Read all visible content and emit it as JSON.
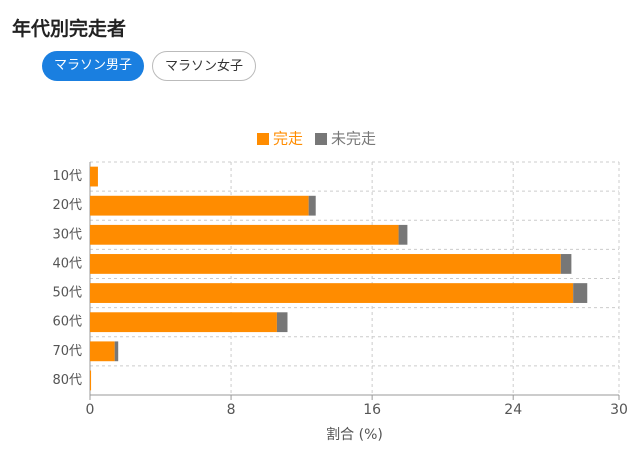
{
  "chart_data": {
    "type": "stacked-barh",
    "title": "年代別完走者",
    "tabs": [
      "マラソン男子",
      "マラソン女子"
    ],
    "categories": [
      "10代",
      "20代",
      "30代",
      "40代",
      "50代",
      "60代",
      "70代",
      "80代"
    ],
    "series": [
      {
        "name": "完走",
        "color": "#ff8c00",
        "values": [
          0.45,
          12.4,
          17.5,
          26.7,
          27.4,
          10.6,
          1.4,
          0.06
        ]
      },
      {
        "name": "未完走",
        "color": "#777777",
        "values": [
          0,
          0.4,
          0.5,
          0.6,
          0.8,
          0.6,
          0.2,
          0
        ]
      }
    ],
    "xlabel": "割合 (%)",
    "xlim": [
      0,
      30
    ],
    "xticks": [
      0,
      8,
      16,
      24,
      30
    ],
    "grid": true,
    "legend": "top"
  }
}
